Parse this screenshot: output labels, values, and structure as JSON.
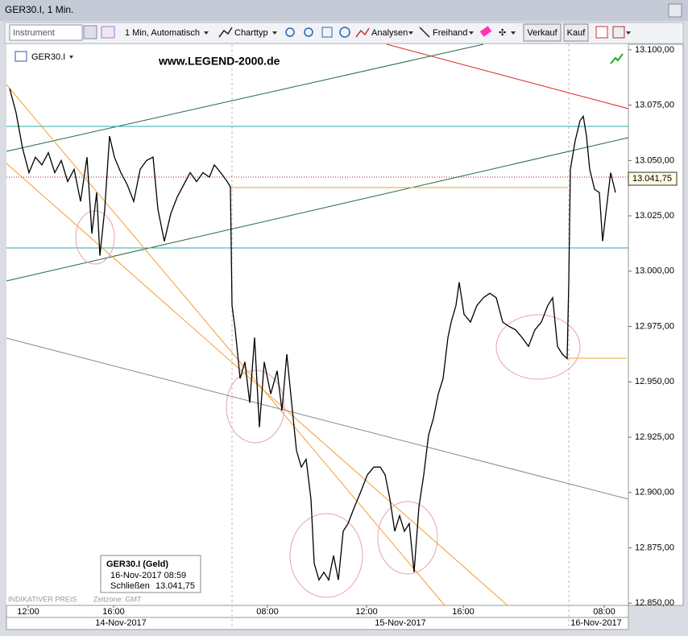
{
  "window": {
    "title": "GER30.I, 1 Min."
  },
  "toolbar": {
    "instrument": "Instrument",
    "interval": "1 Min,  Automatisch",
    "chart_type": "Charttyp",
    "analyses": "Analysen",
    "freehand": "Freihand",
    "sell": "Verkauf",
    "buy": "Kauf"
  },
  "chart_data": {
    "type": "line",
    "symbol": "GER30.I",
    "watermark": "www.LEGEND-2000.de",
    "x": [
      12,
      20,
      28,
      36,
      44,
      52,
      60,
      68,
      76,
      84,
      92,
      100,
      108,
      114,
      120,
      124,
      130,
      136,
      142,
      150,
      158,
      166,
      174,
      182,
      190,
      196,
      204,
      212,
      220,
      228,
      236,
      244,
      252,
      260,
      266,
      274,
      282,
      286,
      288,
      292,
      298,
      304,
      310,
      316,
      322,
      328,
      336,
      344,
      350,
      356,
      362,
      368,
      374,
      380,
      386,
      390,
      396,
      402,
      408,
      414,
      420,
      426,
      432,
      440,
      448,
      456,
      464,
      472,
      478,
      484,
      490,
      496,
      502,
      508,
      514,
      520,
      526,
      532,
      538,
      544,
      550,
      556,
      560,
      566,
      570,
      576,
      584,
      592,
      600,
      608,
      616,
      624,
      632,
      640,
      648,
      656,
      664,
      672,
      680,
      686,
      692,
      698,
      704,
      706,
      708,
      714,
      720,
      724,
      728,
      732,
      738,
      744,
      748,
      752,
      758,
      764
    ],
    "series": [
      {
        "name": "GER30.I",
        "color": "#000000",
        "values": [
          13082.5,
          13071.5,
          13055.5,
          13044.5,
          13051.5,
          13048,
          13053.5,
          13044.5,
          13050,
          13040.5,
          13046,
          13031.5,
          13051.5,
          13017,
          13035.5,
          13007,
          13028,
          13061,
          13051.5,
          13044.5,
          13039,
          13031.5,
          13046,
          13050,
          13051.5,
          13028,
          13013.5,
          13026,
          13033.5,
          13039,
          13044.5,
          13040.5,
          13044.5,
          13042.5,
          13048,
          13044.5,
          13040.5,
          13038,
          12984.5,
          12973.5,
          12951.5,
          12959,
          12940.5,
          12970,
          12929.5,
          12959,
          12944.5,
          12955,
          12937,
          12962.5,
          12940.5,
          12919,
          12911.5,
          12915,
          12897,
          12868,
          12860.5,
          12864,
          12860.5,
          12871.5,
          12860.5,
          12882.5,
          12886,
          12893.5,
          12900.5,
          12908,
          12911.5,
          12911.5,
          12908,
          12897,
          12882.5,
          12889.5,
          12882.5,
          12886,
          12864,
          12893.5,
          12908,
          12926,
          12933.5,
          12944.5,
          12951.5,
          12970,
          12977,
          12984.5,
          12995,
          12980.5,
          12977,
          12984.5,
          12988,
          12990,
          12988,
          12977,
          12975,
          12973.5,
          12970,
          12966,
          12973.5,
          12977,
          12984.5,
          12988,
          12966,
          12962.5,
          12960.5,
          12995,
          13046,
          13059,
          13068,
          13070,
          13061,
          13046,
          13037,
          13035.5,
          13013.5,
          13026,
          13044.5,
          13035.5
        ]
      }
    ],
    "xlim": [
      8,
      780
    ],
    "ylim": [
      12849,
      13102.5
    ],
    "yticks": [
      {
        "value": 13100,
        "label": "13.100,00"
      },
      {
        "value": 13075,
        "label": "13.075,00"
      },
      {
        "value": 13050,
        "label": "13.050,00"
      },
      {
        "value": 13025,
        "label": "13.025,00"
      },
      {
        "value": 13000,
        "label": "13.000,00"
      },
      {
        "value": 12975,
        "label": "12.975,00"
      },
      {
        "value": 12950,
        "label": "12.950,00"
      },
      {
        "value": 12925,
        "label": "12.925,00"
      },
      {
        "value": 12900,
        "label": "12.900,00"
      },
      {
        "value": 12875,
        "label": "12.875,00"
      },
      {
        "value": 12850,
        "label": "12.850,00"
      }
    ],
    "xticks": [
      {
        "value": 35,
        "label": "12:00"
      },
      {
        "value": 141,
        "label": "16:00"
      },
      {
        "value": 332,
        "label": "08:00"
      },
      {
        "value": 455,
        "label": "12:00"
      },
      {
        "value": 575,
        "label": "16:00"
      },
      {
        "value": 750,
        "label": "08:00"
      }
    ],
    "dates": [
      "14-Nov-2017",
      "15-Nov-2017",
      "16-Nov-2017"
    ],
    "last_price": {
      "value": 13041.75,
      "label": "13.041,75"
    },
    "tooltip": {
      "title": "GER30.I (Geld)",
      "datetime": "16-Nov-2017 08:59",
      "close_label": "Schließen",
      "close": "13.041,75"
    },
    "footer": "INDIKATIVER PREIS",
    "timezone": "Zeitzone: GMT"
  }
}
